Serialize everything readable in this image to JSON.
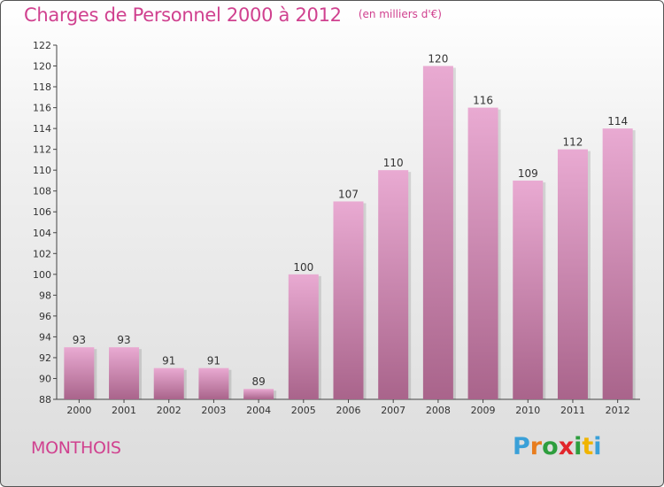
{
  "header": {
    "title": "Charges de Personnel 2000 à 2012",
    "subtitle": "(en milliers d'€)"
  },
  "footer": {
    "commune": "MONTHOIS",
    "logo": "Proxiti",
    "logo_colors": [
      "#3aa0d8",
      "#e87d1e",
      "#2e9e3e",
      "#e2252b",
      "#2e9e3e",
      "#f0b400",
      "#3aa0d8"
    ]
  },
  "colors": {
    "bar_light": "#e9aad2",
    "bar_dark": "#a9648b",
    "title": "#d0418f"
  },
  "chart_data": {
    "type": "bar",
    "categories": [
      "2000",
      "2001",
      "2002",
      "2003",
      "2004",
      "2005",
      "2006",
      "2007",
      "2008",
      "2009",
      "2010",
      "2011",
      "2012"
    ],
    "values": [
      93,
      93,
      91,
      91,
      89,
      100,
      107,
      110,
      120,
      116,
      109,
      112,
      114
    ],
    "ylim": [
      88,
      122
    ],
    "yticks": [
      88,
      90,
      92,
      94,
      96,
      98,
      100,
      102,
      104,
      106,
      108,
      110,
      112,
      114,
      116,
      118,
      120,
      122
    ],
    "grid": false,
    "data_labels": true
  }
}
